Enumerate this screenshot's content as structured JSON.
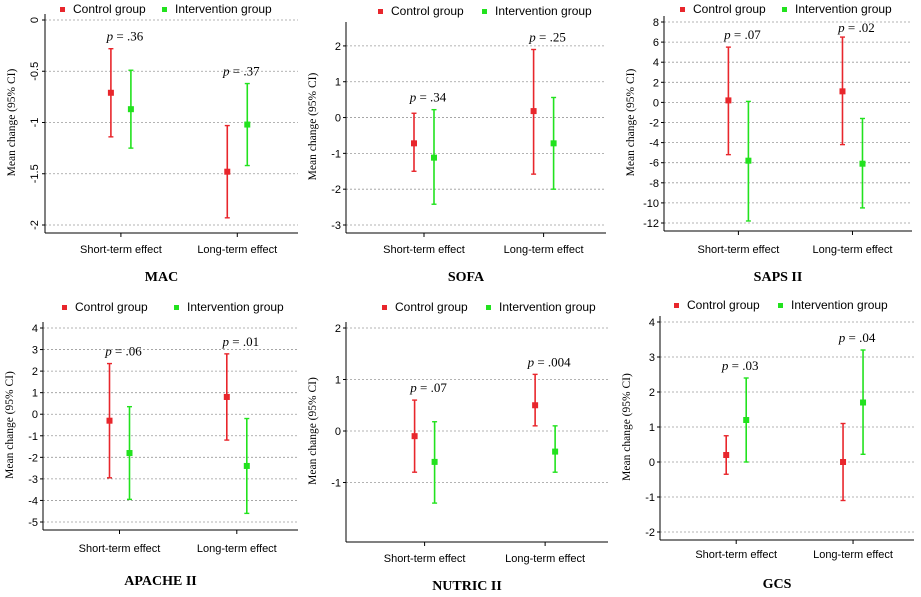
{
  "colors": {
    "control": "#e8262c",
    "intervention": "#22e21e",
    "grid": "#9a9a9a",
    "axis": "#000000"
  },
  "chart_data": [
    {
      "type": "errorbar",
      "title": "MAC",
      "ylabel": "Mean change (95% CI)",
      "ylim": [
        -2,
        0
      ],
      "yticks": [
        0,
        -0.5,
        -1,
        -1.5,
        -2
      ],
      "tick_rotation": -90,
      "categories": [
        "Short-term effect",
        "Long-term effect"
      ],
      "pvalues": [
        ".36",
        ".37"
      ],
      "series": [
        {
          "name": "Control group",
          "values": [
            -0.71,
            -1.48
          ],
          "lower": [
            -1.14,
            -1.93
          ],
          "upper": [
            -0.28,
            -1.03
          ]
        },
        {
          "name": "Intervention group",
          "values": [
            -0.87,
            -1.02
          ],
          "lower": [
            -1.25,
            -1.42
          ],
          "upper": [
            -0.49,
            -0.62
          ]
        }
      ]
    },
    {
      "type": "errorbar",
      "title": "SOFA",
      "ylabel": "Mean change (95% CI)",
      "ylim": [
        -3,
        2.5
      ],
      "yticks": [
        2,
        1,
        0,
        -1,
        -2,
        -3
      ],
      "tick_rotation": 0,
      "categories": [
        "Short-term effect",
        "Long-term effect"
      ],
      "pvalues": [
        ".34",
        ".25"
      ],
      "series": [
        {
          "name": "Control group",
          "values": [
            -0.72,
            0.18
          ],
          "lower": [
            -1.5,
            -1.58
          ],
          "upper": [
            0.12,
            1.9
          ]
        },
        {
          "name": "Intervention group",
          "values": [
            -1.12,
            -0.72
          ],
          "lower": [
            -2.42,
            -2.0
          ],
          "upper": [
            0.22,
            0.56
          ]
        }
      ]
    },
    {
      "type": "errorbar",
      "title": "SAPS II",
      "ylabel": "Mean change (95% CI)",
      "ylim": [
        -12,
        8
      ],
      "yticks": [
        8,
        6,
        4,
        2,
        0,
        -2,
        -4,
        -6,
        -8,
        -10,
        -12
      ],
      "tick_rotation": 0,
      "categories": [
        "Short-term effect",
        "Long-term effect"
      ],
      "pvalues": [
        ".07",
        ".02"
      ],
      "series": [
        {
          "name": "Control group",
          "values": [
            0.2,
            1.1
          ],
          "lower": [
            -5.2,
            -4.2
          ],
          "upper": [
            5.5,
            6.5
          ]
        },
        {
          "name": "Intervention group",
          "values": [
            -5.8,
            -6.1
          ],
          "lower": [
            -11.8,
            -10.5
          ],
          "upper": [
            0.1,
            -1.6
          ]
        }
      ]
    },
    {
      "type": "errorbar",
      "title": "APACHE II",
      "ylabel": "Mean change (95% CI)",
      "ylim": [
        -5,
        4
      ],
      "yticks": [
        4,
        3,
        2,
        1,
        0,
        -1,
        -2,
        -3,
        -4,
        -5
      ],
      "tick_rotation": 0,
      "categories": [
        "Short-term effect",
        "Long-term effect"
      ],
      "pvalues": [
        ".06",
        ".01"
      ],
      "series": [
        {
          "name": "Control group",
          "values": [
            -0.3,
            0.8
          ],
          "lower": [
            -2.95,
            -1.2
          ],
          "upper": [
            2.35,
            2.8
          ]
        },
        {
          "name": "Intervention group",
          "values": [
            -1.8,
            -2.4
          ],
          "lower": [
            -3.95,
            -4.6
          ],
          "upper": [
            0.35,
            -0.2
          ]
        }
      ]
    },
    {
      "type": "errorbar",
      "title": "NUTRIC II",
      "ylabel": "Mean change (95% CI)",
      "ylim": [
        -2,
        2
      ],
      "yticks": [
        2,
        1,
        0,
        -1
      ],
      "tick_rotation": 0,
      "categories": [
        "Short-term effect",
        "Long-term effect"
      ],
      "pvalues": [
        ".07",
        ".004"
      ],
      "series": [
        {
          "name": "Control group",
          "values": [
            -0.1,
            0.5
          ],
          "lower": [
            -0.8,
            0.1
          ],
          "upper": [
            0.6,
            1.1
          ]
        },
        {
          "name": "Intervention group",
          "values": [
            -0.6,
            -0.4
          ],
          "lower": [
            -1.4,
            -0.8
          ],
          "upper": [
            0.18,
            0.1
          ]
        }
      ]
    },
    {
      "type": "errorbar",
      "title": "GCS",
      "ylabel": "Mean change (95% CI)",
      "ylim": [
        -2,
        4
      ],
      "yticks": [
        4,
        3,
        2,
        1,
        0,
        -1,
        -2
      ],
      "tick_rotation": 0,
      "categories": [
        "Short-term effect",
        "Long-term effect"
      ],
      "pvalues": [
        ".03",
        ".04"
      ],
      "series": [
        {
          "name": "Control group",
          "values": [
            0.2,
            0.0
          ],
          "lower": [
            -0.35,
            -1.1
          ],
          "upper": [
            0.75,
            1.1
          ]
        },
        {
          "name": "Intervention group",
          "values": [
            1.2,
            1.7
          ],
          "lower": [
            0.0,
            0.22
          ],
          "upper": [
            2.4,
            3.2
          ]
        }
      ]
    }
  ]
}
